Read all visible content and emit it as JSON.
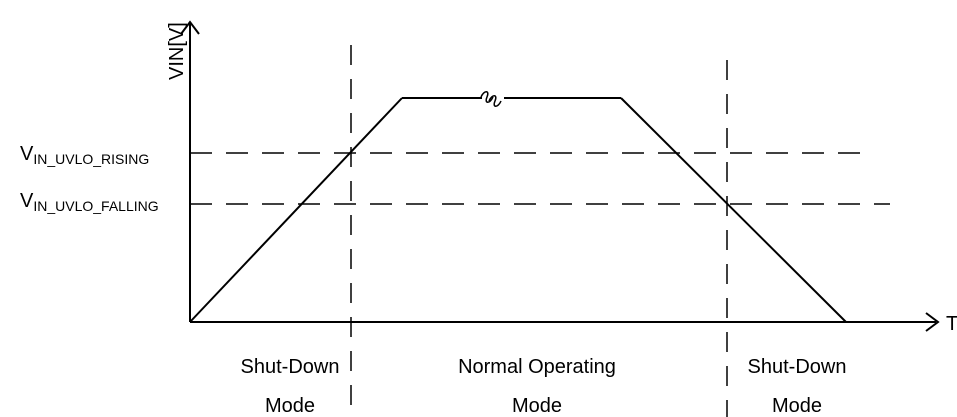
{
  "axes": {
    "y_label": "VIN[V]",
    "x_label": "Time"
  },
  "thresholds": {
    "rising": {
      "main": "V",
      "sub": "IN_UVLO_RISING"
    },
    "falling": {
      "main": "V",
      "sub": "IN_UVLO_FALLING"
    }
  },
  "modes": [
    {
      "line1": "Shut-Down",
      "line2": "Mode"
    },
    {
      "line1": "Normal Operating",
      "line2": "Mode"
    },
    {
      "line1": "Shut-Down",
      "line2": "Mode"
    }
  ],
  "colors": {
    "line": "#000000",
    "dash": "#000000",
    "background": "#ffffff"
  },
  "icons": {
    "break_mark": "squiggle-break-icon"
  }
}
